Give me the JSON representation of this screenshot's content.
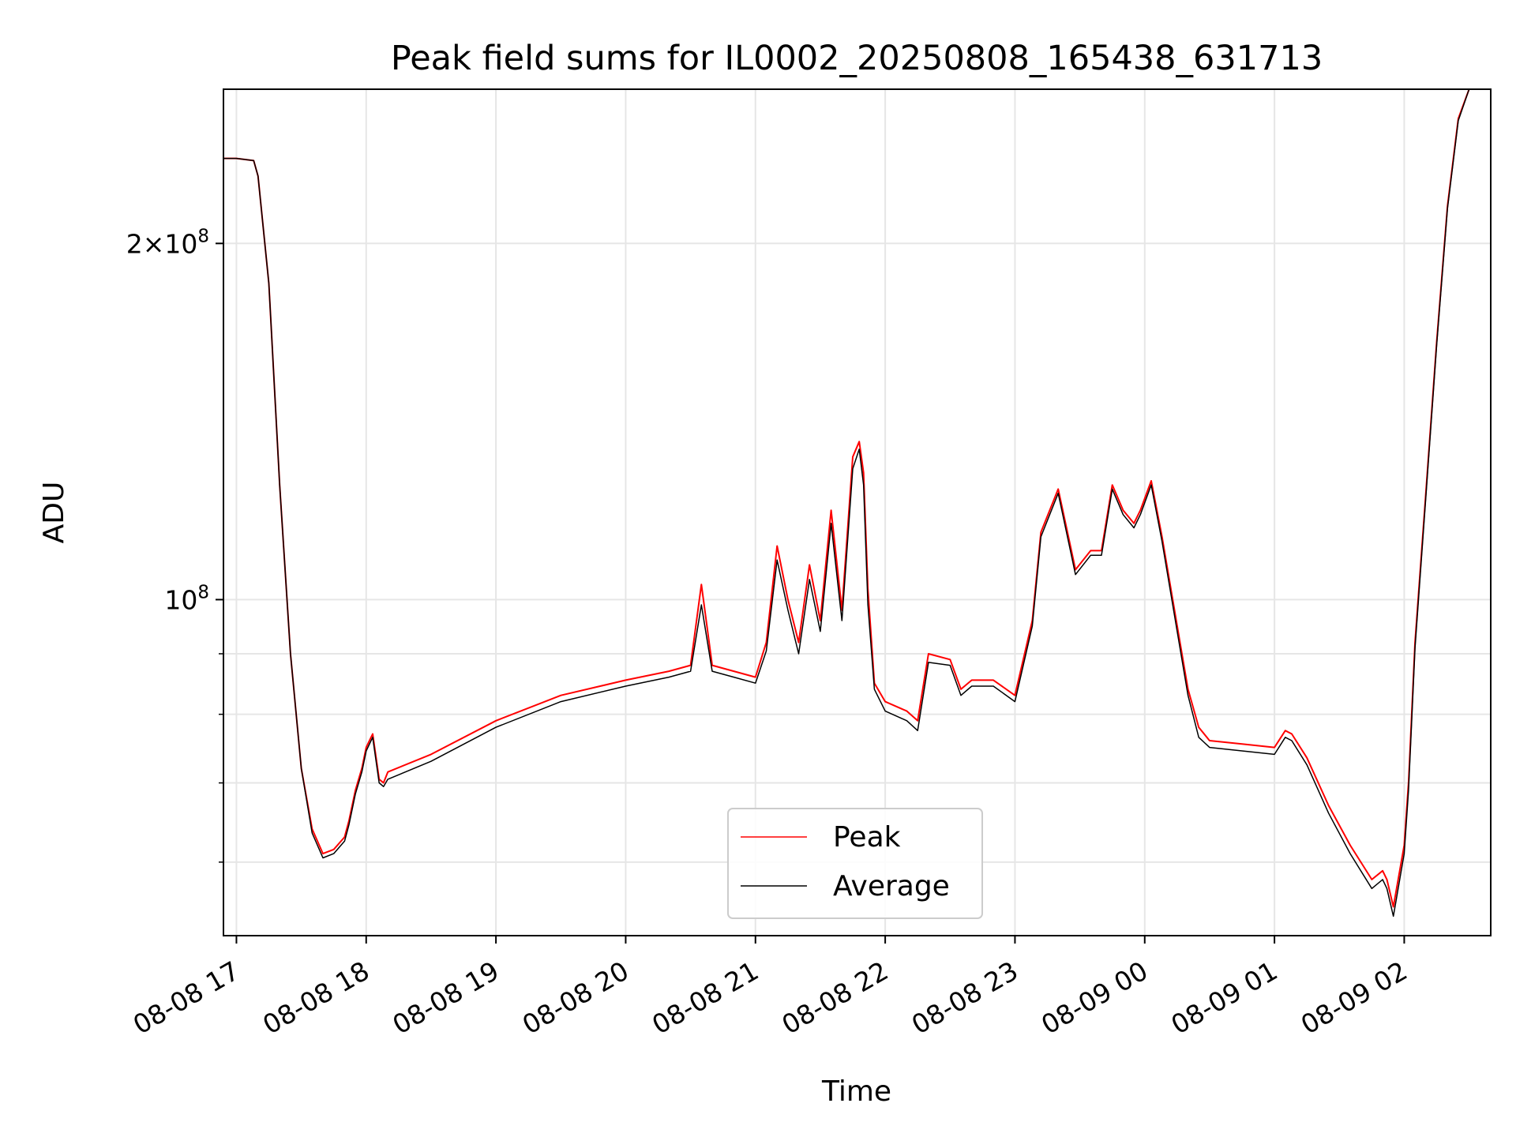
{
  "chart_data": {
    "type": "line",
    "title": "Peak field sums for IL0002_20250808_165438_631713",
    "xlabel": "Time",
    "ylabel": "ADU",
    "yscale": "log",
    "ylim": [
      52000000,
      270000000
    ],
    "xlim": [
      "2025-08-08 16:54",
      "2025-08-09 02:40"
    ],
    "grid": true,
    "legend_position": "lower center",
    "x_ticks": [
      "2025-08-08 17:00",
      "2025-08-08 18:00",
      "2025-08-08 19:00",
      "2025-08-08 20:00",
      "2025-08-08 21:00",
      "2025-08-08 22:00",
      "2025-08-08 23:00",
      "2025-08-09 00:00",
      "2025-08-09 01:00",
      "2025-08-09 02:00"
    ],
    "x_tick_labels": [
      "08-08 17",
      "08-08 18",
      "08-08 19",
      "08-08 20",
      "08-08 21",
      "08-08 22",
      "08-08 23",
      "08-09 00",
      "08-09 01",
      "08-09 02"
    ],
    "y_major_ticks": [
      100000000,
      200000000
    ],
    "y_major_labels": [
      {
        "base": "10",
        "exp": "8"
      },
      {
        "mant": "2",
        "base": "10",
        "exp": "8"
      }
    ],
    "y_minor_ticks": [
      60000000,
      70000000,
      80000000,
      90000000
    ],
    "x": [
      "2025-08-08 16:54",
      "2025-08-08 17:00",
      "2025-08-08 17:08",
      "2025-08-08 17:10",
      "2025-08-08 17:15",
      "2025-08-08 17:20",
      "2025-08-08 17:25",
      "2025-08-08 17:30",
      "2025-08-08 17:35",
      "2025-08-08 17:40",
      "2025-08-08 17:45",
      "2025-08-08 17:50",
      "2025-08-08 17:52",
      "2025-08-08 17:55",
      "2025-08-08 17:58",
      "2025-08-08 18:00",
      "2025-08-08 18:03",
      "2025-08-08 18:06",
      "2025-08-08 18:08",
      "2025-08-08 18:10",
      "2025-08-08 18:30",
      "2025-08-08 19:00",
      "2025-08-08 19:30",
      "2025-08-08 20:00",
      "2025-08-08 20:20",
      "2025-08-08 20:30",
      "2025-08-08 20:35",
      "2025-08-08 20:40",
      "2025-08-08 20:50",
      "2025-08-08 21:00",
      "2025-08-08 21:05",
      "2025-08-08 21:10",
      "2025-08-08 21:15",
      "2025-08-08 21:20",
      "2025-08-08 21:25",
      "2025-08-08 21:30",
      "2025-08-08 21:35",
      "2025-08-08 21:40",
      "2025-08-08 21:45",
      "2025-08-08 21:48",
      "2025-08-08 21:50",
      "2025-08-08 21:52",
      "2025-08-08 21:55",
      "2025-08-08 22:00",
      "2025-08-08 22:10",
      "2025-08-08 22:15",
      "2025-08-08 22:20",
      "2025-08-08 22:30",
      "2025-08-08 22:35",
      "2025-08-08 22:40",
      "2025-08-08 22:50",
      "2025-08-08 23:00",
      "2025-08-08 23:08",
      "2025-08-08 23:12",
      "2025-08-08 23:20",
      "2025-08-08 23:28",
      "2025-08-08 23:35",
      "2025-08-08 23:40",
      "2025-08-08 23:45",
      "2025-08-08 23:50",
      "2025-08-08 23:55",
      "2025-08-08 23:58",
      "2025-08-09 00:03",
      "2025-08-09 00:08",
      "2025-08-09 00:15",
      "2025-08-09 00:20",
      "2025-08-09 00:25",
      "2025-08-09 00:30",
      "2025-08-09 00:45",
      "2025-08-09 01:00",
      "2025-08-09 01:05",
      "2025-08-09 01:08",
      "2025-08-09 01:15",
      "2025-08-09 01:25",
      "2025-08-09 01:35",
      "2025-08-09 01:45",
      "2025-08-09 01:50",
      "2025-08-09 01:52",
      "2025-08-09 01:55",
      "2025-08-09 02:00",
      "2025-08-09 02:02",
      "2025-08-09 02:05",
      "2025-08-09 02:10",
      "2025-08-09 02:15",
      "2025-08-09 02:20",
      "2025-08-09 02:25",
      "2025-08-09 02:30",
      "2025-08-09 02:35"
    ],
    "series": [
      {
        "name": "Peak",
        "color": "#ff0000",
        "values": [
          236000000,
          236000000,
          235000000,
          228000000,
          185000000,
          125000000,
          90000000,
          72000000,
          64000000,
          61000000,
          61500000,
          63000000,
          65000000,
          69000000,
          72000000,
          75000000,
          77000000,
          70500000,
          70000000,
          71500000,
          74000000,
          79000000,
          83000000,
          85500000,
          87000000,
          88000000,
          103000000,
          88000000,
          87000000,
          86000000,
          92000000,
          111000000,
          100000000,
          92000000,
          107000000,
          96000000,
          119000000,
          98000000,
          132000000,
          136000000,
          128000000,
          102000000,
          85000000,
          82000000,
          80500000,
          79000000,
          90000000,
          89000000,
          84000000,
          85500000,
          85500000,
          83000000,
          96000000,
          114000000,
          124000000,
          106000000,
          110000000,
          110000000,
          125000000,
          119000000,
          116000000,
          119000000,
          126000000,
          113000000,
          95000000,
          84000000,
          78000000,
          76000000,
          75500000,
          75000000,
          77500000,
          77000000,
          73500000,
          67000000,
          62000000,
          58000000,
          59000000,
          58000000,
          55000000,
          62000000,
          70000000,
          92000000,
          123000000,
          165000000,
          215000000,
          255000000,
          275000000,
          275000000
        ]
      },
      {
        "name": "Average",
        "color": "#000000",
        "values": [
          236000000,
          236000000,
          235000000,
          228000000,
          185000000,
          125000000,
          90000000,
          72000000,
          63500000,
          60500000,
          61000000,
          62500000,
          64500000,
          68500000,
          71500000,
          74500000,
          76500000,
          70000000,
          69500000,
          70500000,
          73000000,
          78000000,
          82000000,
          84500000,
          86000000,
          87000000,
          99000000,
          87000000,
          86000000,
          85000000,
          90500000,
          108000000,
          98000000,
          90000000,
          104000000,
          94000000,
          116000000,
          96000000,
          129000000,
          134000000,
          125000000,
          99000000,
          84000000,
          80500000,
          79000000,
          77500000,
          88500000,
          88000000,
          83000000,
          84500000,
          84500000,
          82000000,
          95000000,
          113000000,
          123000000,
          105000000,
          109000000,
          109000000,
          124000000,
          118000000,
          115000000,
          118000000,
          125000000,
          112000000,
          94000000,
          83000000,
          76500000,
          75000000,
          74500000,
          74000000,
          76500000,
          76000000,
          72500000,
          66000000,
          61000000,
          57000000,
          58000000,
          57000000,
          54000000,
          61000000,
          69000000,
          91000000,
          122000000,
          164000000,
          214000000,
          254000000,
          275000000,
          275000000
        ]
      }
    ]
  }
}
